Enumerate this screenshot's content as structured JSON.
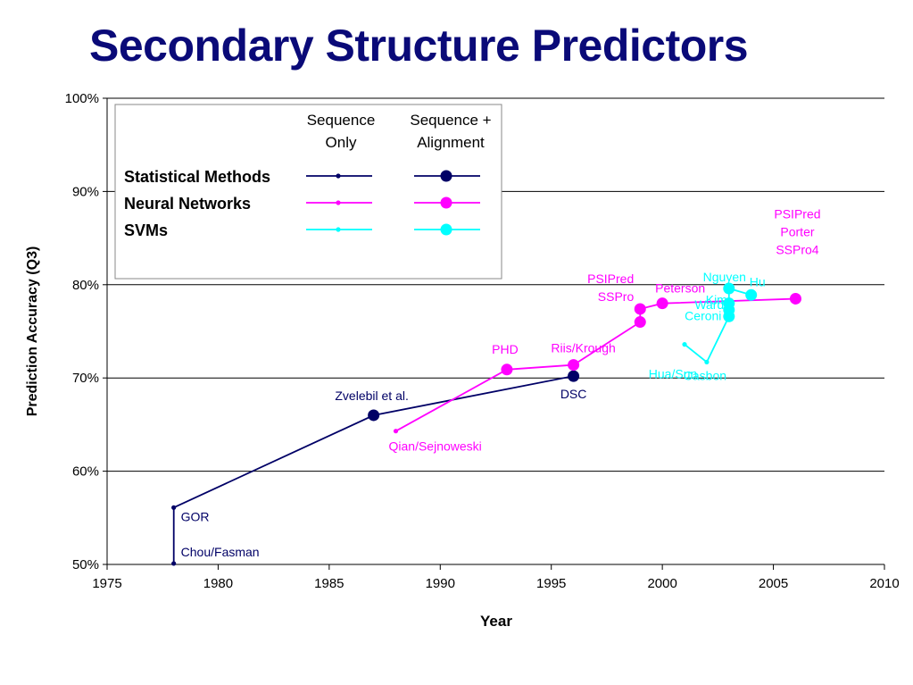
{
  "slide": {
    "title": "Secondary Structure Predictors"
  },
  "chart_data": {
    "type": "line",
    "xlabel": "Year",
    "ylabel": "Prediction Accuracy (Q3)",
    "xlim": [
      1975,
      2010
    ],
    "ylim": [
      50,
      100
    ],
    "xticks": [
      "1975",
      "1980",
      "1985",
      "1990",
      "1995",
      "2000",
      "2005",
      "2010"
    ],
    "yticks": [
      "50%",
      "60%",
      "70%",
      "80%",
      "90%",
      "100%"
    ],
    "grid": "horizontal",
    "legend": {
      "placement": "top-left",
      "col_headers": [
        "Sequence\nOnly",
        "Sequence +\nAlignment"
      ],
      "rows": [
        "Statistical Methods",
        "Neural Networks",
        "SVMs"
      ]
    },
    "colors": {
      "statistical": "#000066",
      "neural": "#ff00ff",
      "svm": "#00ffff",
      "title": "#0a0a78"
    },
    "series": [
      {
        "group": "statistical",
        "points": [
          {
            "x": 1978,
            "y": 50.1,
            "label": "Chou/Fasman",
            "kind": "single"
          },
          {
            "x": 1978,
            "y": 56.1,
            "label": "GOR",
            "kind": "single"
          },
          {
            "x": 1987,
            "y": 66,
            "label": "Zvelebil et al.",
            "kind": "alignment"
          },
          {
            "x": 1996,
            "y": 70.2,
            "label": "DSC",
            "kind": "alignment"
          }
        ]
      },
      {
        "group": "neural",
        "points": [
          {
            "x": 1988,
            "y": 64.3,
            "label": "Qian/Sejnoweski",
            "kind": "single"
          },
          {
            "x": 1993,
            "y": 70.9,
            "label": "PHD",
            "kind": "alignment"
          },
          {
            "x": 1996,
            "y": 71.4,
            "label": "Riis/Krough",
            "kind": "alignment"
          },
          {
            "x": 1999,
            "y": 76,
            "label": "",
            "kind": "alignment"
          },
          {
            "x": 1999,
            "y": 77.4,
            "label": "PSIPred\nSSPro",
            "kind": "alignment"
          },
          {
            "x": 2000,
            "y": 78,
            "label": "Peterson",
            "kind": "alignment"
          },
          {
            "x": 2006,
            "y": 78.5,
            "label": "PSIPred\nPorter\nSSPro4",
            "kind": "alignment"
          }
        ]
      },
      {
        "group": "svm",
        "points": [
          {
            "x": 2001,
            "y": 73.6,
            "label": "Hua/Sun",
            "kind": "single"
          },
          {
            "x": 2002,
            "y": 71.7,
            "label": "Casbon",
            "kind": "single"
          },
          {
            "x": 2003,
            "y": 76.6,
            "label": "Ceroni",
            "kind": "alignment"
          },
          {
            "x": 2003,
            "y": 77.3,
            "label": "Ward",
            "kind": "alignment"
          },
          {
            "x": 2003,
            "y": 78,
            "label": "Kim",
            "kind": "alignment"
          },
          {
            "x": 2003,
            "y": 79.6,
            "label": "Nguyen",
            "kind": "alignment"
          },
          {
            "x": 2004,
            "y": 78.9,
            "label": "Hu",
            "kind": "alignment"
          }
        ]
      }
    ]
  }
}
